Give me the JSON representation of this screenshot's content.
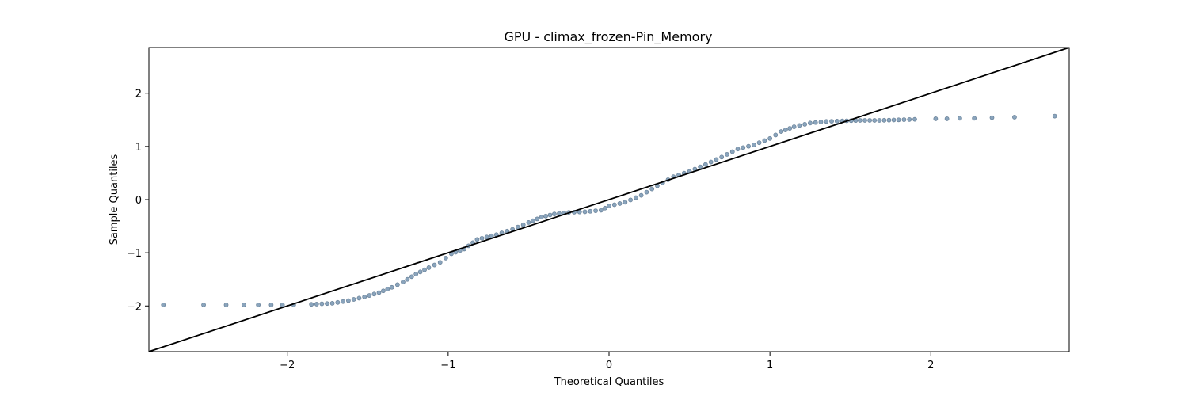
{
  "chart_data": {
    "type": "scatter",
    "title": "GPU - climax_frozen-Pin_Memory",
    "xlabel": "Theoretical Quantiles",
    "ylabel": "Sample Quantiles",
    "xlim": [
      -2.86,
      2.86
    ],
    "ylim": [
      -2.86,
      2.86
    ],
    "xticks": [
      -2,
      -1,
      0,
      1,
      2
    ],
    "yticks": [
      -2,
      -1,
      0,
      1,
      2
    ],
    "xtick_labels": [
      "−2",
      "−1",
      "0",
      "1",
      "2"
    ],
    "ytick_labels": [
      "−2",
      "−1",
      "0",
      "1",
      "2"
    ],
    "grid": false,
    "marker_color": "#8aa4bc",
    "marker_edge_color": "#3d5a75",
    "reference_line": {
      "from": [
        -2.86,
        -2.86
      ],
      "to": [
        2.86,
        2.86
      ],
      "color": "#000000"
    },
    "anchors": [
      [
        -2.77,
        -1.98
      ],
      [
        -2.52,
        -1.98
      ],
      [
        -2.38,
        -1.98
      ],
      [
        -2.27,
        -1.98
      ],
      [
        -2.18,
        -1.98
      ],
      [
        -2.1,
        -1.98
      ],
      [
        -2.03,
        -1.98
      ],
      [
        -1.96,
        -1.98
      ],
      [
        -1.85,
        -1.97
      ],
      [
        -1.72,
        -1.95
      ],
      [
        -1.62,
        -1.9
      ],
      [
        -1.52,
        -1.83
      ],
      [
        -1.43,
        -1.75
      ],
      [
        -1.35,
        -1.65
      ],
      [
        -1.28,
        -1.55
      ],
      [
        -1.2,
        -1.4
      ],
      [
        -1.12,
        -1.28
      ],
      [
        -1.05,
        -1.18
      ],
      [
        -0.98,
        -1.02
      ],
      [
        -0.9,
        -0.93
      ],
      [
        -0.82,
        -0.75
      ],
      [
        -0.7,
        -0.66
      ],
      [
        -0.6,
        -0.56
      ],
      [
        -0.5,
        -0.43
      ],
      [
        -0.42,
        -0.33
      ],
      [
        -0.34,
        -0.27
      ],
      [
        -0.25,
        -0.24
      ],
      [
        -0.15,
        -0.23
      ],
      [
        -0.05,
        -0.2
      ],
      [
        0.0,
        -0.12
      ],
      [
        0.1,
        -0.05
      ],
      [
        0.2,
        0.08
      ],
      [
        0.3,
        0.26
      ],
      [
        0.4,
        0.43
      ],
      [
        0.5,
        0.53
      ],
      [
        0.6,
        0.66
      ],
      [
        0.7,
        0.8
      ],
      [
        0.8,
        0.95
      ],
      [
        0.9,
        1.03
      ],
      [
        1.0,
        1.15
      ],
      [
        1.07,
        1.28
      ],
      [
        1.15,
        1.37
      ],
      [
        1.25,
        1.44
      ],
      [
        1.35,
        1.47
      ],
      [
        1.45,
        1.48
      ],
      [
        1.56,
        1.49
      ],
      [
        1.68,
        1.49
      ],
      [
        1.8,
        1.5
      ],
      [
        1.9,
        1.51
      ],
      [
        2.03,
        1.52
      ],
      [
        2.1,
        1.52
      ],
      [
        2.18,
        1.53
      ],
      [
        2.27,
        1.53
      ],
      [
        2.38,
        1.54
      ],
      [
        2.52,
        1.55
      ],
      [
        2.77,
        1.57
      ]
    ]
  }
}
